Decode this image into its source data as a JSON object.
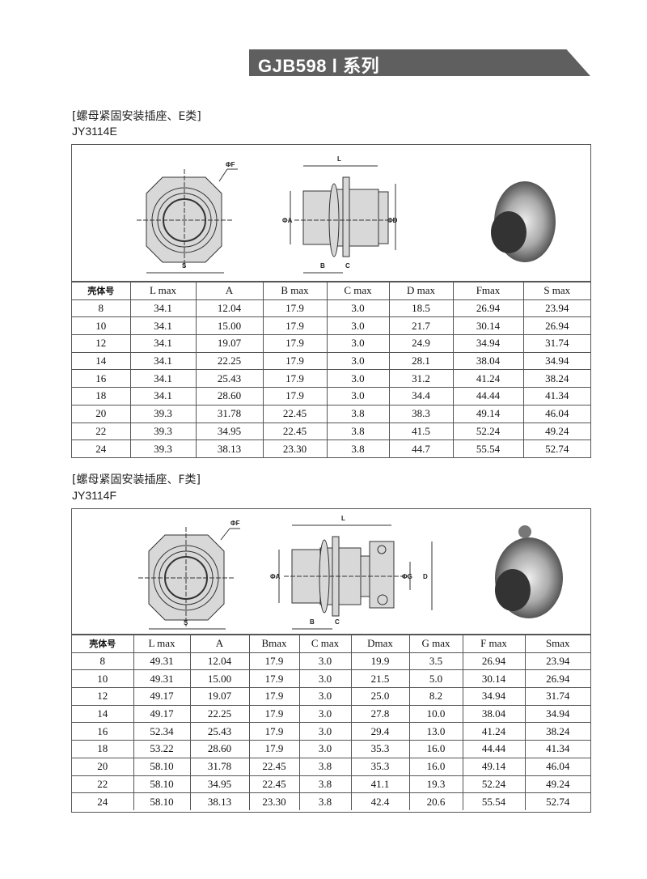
{
  "header": {
    "title": "GJB598 Ⅰ 系列"
  },
  "sections": [
    {
      "title": "[螺母紧固安装插座、E类]",
      "model": "JY3114E",
      "dim_labels": {
        "F": "ΦF",
        "S": "S",
        "L": "L",
        "A": "ΦA",
        "D": "ΦD",
        "B": "B",
        "C": "C"
      },
      "columns": [
        "壳体号",
        "L max",
        "A",
        "B max",
        "C max",
        "D max",
        "Fmax",
        "S max"
      ],
      "rows": [
        [
          "8",
          "34.1",
          "12.04",
          "17.9",
          "3.0",
          "18.5",
          "26.94",
          "23.94"
        ],
        [
          "10",
          "34.1",
          "15.00",
          "17.9",
          "3.0",
          "21.7",
          "30.14",
          "26.94"
        ],
        [
          "12",
          "34.1",
          "19.07",
          "17.9",
          "3.0",
          "24.9",
          "34.94",
          "31.74"
        ],
        [
          "14",
          "34.1",
          "22.25",
          "17.9",
          "3.0",
          "28.1",
          "38.04",
          "34.94"
        ],
        [
          "16",
          "34.1",
          "25.43",
          "17.9",
          "3.0",
          "31.2",
          "41.24",
          "38.24"
        ],
        [
          "18",
          "34.1",
          "28.60",
          "17.9",
          "3.0",
          "34.4",
          "44.44",
          "41.34"
        ],
        [
          "20",
          "39.3",
          "31.78",
          "22.45",
          "3.8",
          "38.3",
          "49.14",
          "46.04"
        ],
        [
          "22",
          "39.3",
          "34.95",
          "22.45",
          "3.8",
          "41.5",
          "52.24",
          "49.24"
        ],
        [
          "24",
          "39.3",
          "38.13",
          "23.30",
          "3.8",
          "44.7",
          "55.54",
          "52.74"
        ]
      ]
    },
    {
      "title": "[螺母紧固安装插座、F类]",
      "model": "JY3114F",
      "dim_labels": {
        "F": "ΦF",
        "S": "S",
        "L": "L",
        "A": "ΦA",
        "G": "ΦG",
        "D": "D",
        "B": "B",
        "C": "C"
      },
      "columns": [
        "壳体号",
        "L max",
        "A",
        "Bmax",
        "C max",
        "Dmax",
        "G max",
        "F max",
        "Smax"
      ],
      "rows": [
        [
          "8",
          "49.31",
          "12.04",
          "17.9",
          "3.0",
          "19.9",
          "3.5",
          "26.94",
          "23.94"
        ],
        [
          "10",
          "49.31",
          "15.00",
          "17.9",
          "3.0",
          "21.5",
          "5.0",
          "30.14",
          "26.94"
        ],
        [
          "12",
          "49.17",
          "19.07",
          "17.9",
          "3.0",
          "25.0",
          "8.2",
          "34.94",
          "31.74"
        ],
        [
          "14",
          "49.17",
          "22.25",
          "17.9",
          "3.0",
          "27.8",
          "10.0",
          "38.04",
          "34.94"
        ],
        [
          "16",
          "52.34",
          "25.43",
          "17.9",
          "3.0",
          "29.4",
          "13.0",
          "41.24",
          "38.24"
        ],
        [
          "18",
          "53.22",
          "28.60",
          "17.9",
          "3.0",
          "35.3",
          "16.0",
          "44.44",
          "41.34"
        ],
        [
          "20",
          "58.10",
          "31.78",
          "22.45",
          "3.8",
          "35.3",
          "16.0",
          "49.14",
          "46.04"
        ],
        [
          "22",
          "58.10",
          "34.95",
          "22.45",
          "3.8",
          "41.1",
          "19.3",
          "52.24",
          "49.24"
        ],
        [
          "24",
          "58.10",
          "38.13",
          "23.30",
          "3.8",
          "42.4",
          "20.6",
          "55.54",
          "52.74"
        ]
      ]
    }
  ]
}
